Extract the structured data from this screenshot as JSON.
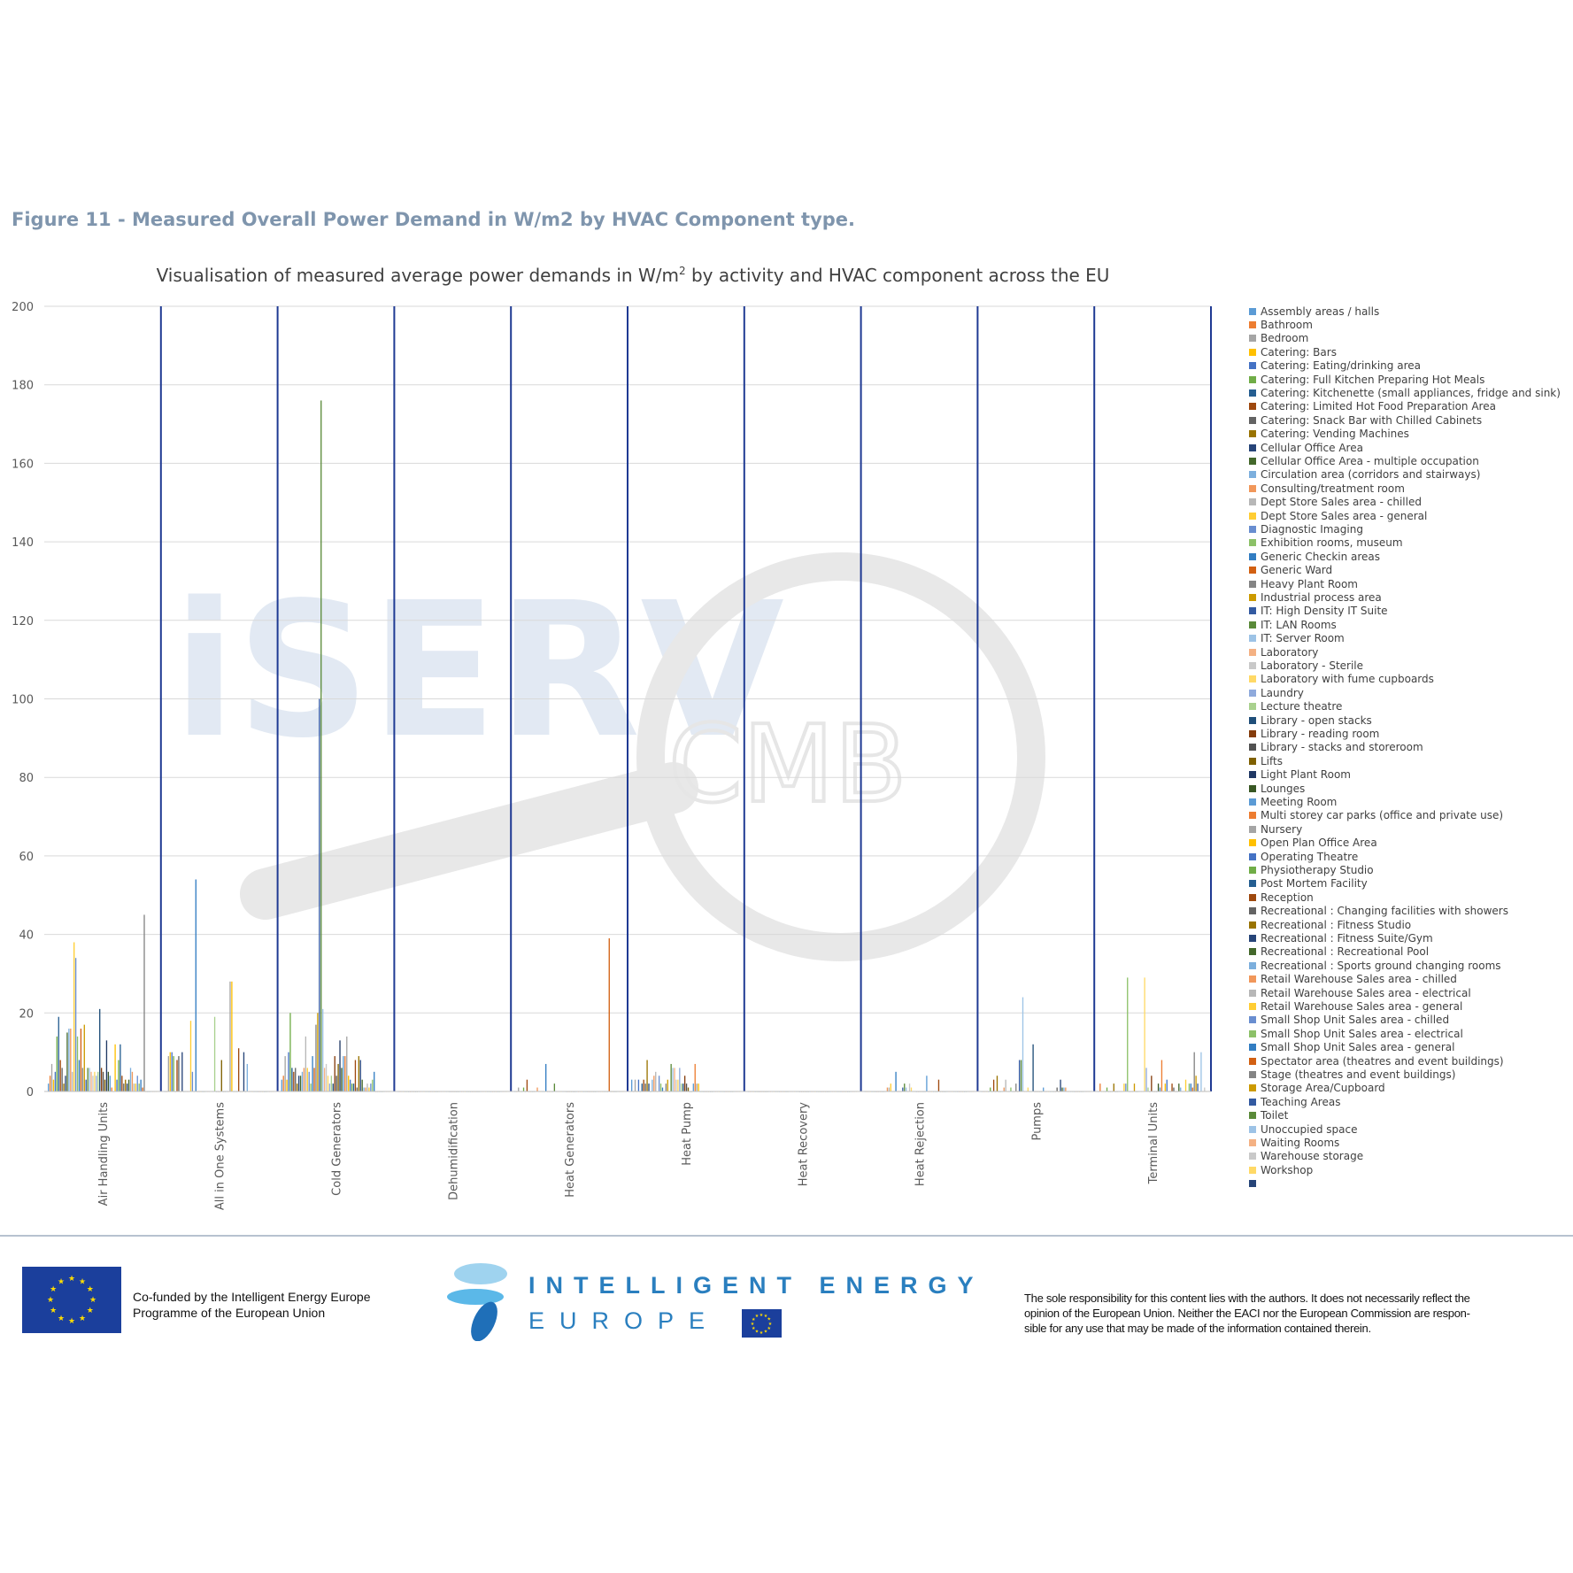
{
  "figure_caption": "Figure 11 - Measured Overall Power Demand in W/m2 by HVAC Component type.",
  "watermark": {
    "text1": "iSERV",
    "text2": "CMB"
  },
  "colors": {
    "palette": [
      "#5b9bd5",
      "#ed7d31",
      "#a5a5a5",
      "#ffc000",
      "#4472c4",
      "#70ad47",
      "#255e91",
      "#9e480e",
      "#636363",
      "#997300",
      "#264478",
      "#43682b",
      "#7cafdd",
      "#f1975a",
      "#b7b7b7",
      "#ffcd33",
      "#698ed0",
      "#8cc168",
      "#327dc2",
      "#d26012",
      "#848484",
      "#cc9a00",
      "#335aa1",
      "#5a8a39",
      "#9dc3e6",
      "#f4b183",
      "#c9c9c9",
      "#ffd966",
      "#8faadc",
      "#a9d18e",
      "#1f4e79",
      "#843c0c",
      "#525252",
      "#7f6000",
      "#203864",
      "#385723"
    ],
    "divider": "#1f3a93",
    "grid": "#d9d9d9",
    "axis_text": "#595959"
  },
  "chart_data": {
    "type": "bar",
    "title_prefix": "Visualisation of measured average power demands in W/m",
    "title_sup": "2",
    "title_suffix": " by activity and HVAC component across the EU",
    "ylim": [
      0,
      200
    ],
    "yticks": [
      "0",
      "20",
      "40",
      "60",
      "80",
      "100",
      "120",
      "140",
      "160",
      "180",
      "200"
    ],
    "categories": [
      "Air Handling Units",
      "All in One Systems",
      "Cold Generators",
      "Dehumidification",
      "Heat Generators",
      "Heat Pump",
      "Heat Recovery",
      "Heat Rejection",
      "Pumps",
      "Terminal Units"
    ],
    "series_names": [
      "Assembly areas / halls",
      "Bathroom",
      "Bedroom",
      "Catering: Bars",
      "Catering: Eating/drinking area",
      "Catering: Full Kitchen Preparing Hot Meals",
      "Catering: Kitchenette (small appliances, fridge and sink)",
      "Catering: Limited Hot Food Preparation Area",
      "Catering: Snack Bar with Chilled Cabinets",
      "Catering: Vending Machines",
      "Cellular Office Area",
      "Cellular Office Area - multiple occupation",
      "Circulation area (corridors and stairways)",
      "Consulting/treatment room",
      "Dept Store Sales area - chilled",
      "Dept Store Sales area - general",
      "Diagnostic Imaging",
      "Exhibition rooms, museum",
      "Generic Checkin areas",
      "Generic Ward",
      "Heavy Plant Room",
      "Industrial process area",
      "IT: High Density IT Suite",
      "IT: LAN Rooms",
      "IT: Server Room",
      "Laboratory",
      "Laboratory - Sterile",
      "Laboratory with fume cupboards",
      "Laundry",
      "Lecture theatre",
      "Library - open stacks",
      "Library - reading room",
      "Library - stacks and storeroom",
      "Lifts",
      "Light Plant Room",
      "Lounges",
      "Meeting Room",
      "Multi storey car parks (office and private use)",
      "Nursery",
      "Open Plan Office Area",
      "Operating Theatre",
      "Physiotherapy Studio",
      "Post Mortem Facility",
      "Reception",
      "Recreational : Changing facilities with showers",
      "Recreational : Fitness Studio",
      "Recreational : Fitness Suite/Gym",
      "Recreational : Recreational Pool",
      "Recreational : Sports ground changing rooms",
      "Retail Warehouse Sales area - chilled",
      "Retail Warehouse Sales area - electrical",
      "Retail Warehouse Sales area - general",
      "Small Shop Unit Sales area - chilled",
      "Small Shop Unit Sales area - electrical",
      "Small Shop Unit Sales area - general",
      "Spectator area (theatres and event buildings)",
      "Stage (theatres and event buildings)",
      "Storage Area/Cupboard",
      "Teaching Areas",
      "Toilet",
      "Unoccupied space",
      "Waiting Rooms",
      "Warehouse storage",
      "Workshop",
      ""
    ],
    "values": [
      [
        2,
        4,
        7,
        3,
        5,
        14,
        19,
        8,
        6,
        2,
        4,
        15,
        16,
        16,
        5,
        38,
        34,
        14,
        8,
        16,
        6,
        17,
        3,
        6,
        6,
        5,
        4,
        5,
        4,
        5,
        21,
        6,
        5,
        3,
        13,
        5,
        4,
        1,
        0,
        12,
        3,
        8,
        12,
        4,
        2,
        3,
        2,
        3,
        6,
        5,
        2,
        2,
        4,
        2,
        3,
        1,
        45,
        0,
        0,
        0,
        0,
        0,
        0,
        0
      ],
      [
        0,
        0,
        9,
        10,
        10,
        9,
        0,
        8,
        9,
        0,
        10,
        0,
        0,
        0,
        0,
        18,
        5,
        0,
        54,
        0,
        0,
        0,
        0,
        0,
        0,
        0,
        0,
        0,
        0,
        19,
        0,
        0,
        0,
        8,
        0,
        0,
        0,
        0,
        28,
        28,
        0,
        0,
        0,
        11,
        0,
        0,
        10,
        0,
        7,
        0,
        0,
        0,
        0,
        0,
        0,
        0,
        0,
        0,
        0,
        0,
        0,
        0,
        0,
        0
      ],
      [
        3,
        4,
        9,
        3,
        10,
        20,
        6,
        5,
        6,
        2,
        4,
        4,
        5,
        6,
        14,
        6,
        5,
        2,
        9,
        6,
        17,
        20,
        100,
        176,
        21,
        6,
        7,
        4,
        2,
        4,
        2,
        9,
        4,
        7,
        13,
        6,
        9,
        9,
        14,
        4,
        3,
        2,
        2,
        8,
        1,
        9,
        8,
        3,
        1,
        1,
        2,
        1,
        2,
        3,
        5,
        0,
        0,
        0,
        0,
        0,
        0,
        0,
        0,
        0
      ],
      [
        0,
        0,
        0,
        0,
        0,
        0,
        0,
        0,
        0,
        0,
        0,
        0,
        0,
        0,
        0,
        0,
        0,
        0,
        0,
        0,
        0,
        0,
        0,
        0,
        0,
        0,
        0,
        0,
        0,
        0,
        0,
        0,
        0,
        0,
        0,
        0,
        0,
        0,
        0,
        0,
        0,
        0,
        0,
        0,
        0,
        0,
        0,
        0,
        0,
        0,
        0,
        0,
        0,
        0,
        0,
        0,
        0,
        0,
        0,
        0,
        0,
        0,
        0,
        0
      ],
      [
        0,
        0,
        1,
        0,
        0,
        1,
        0,
        3,
        0,
        0,
        0,
        0,
        0,
        1,
        0,
        0,
        0,
        0,
        7,
        0,
        0,
        0,
        0,
        2,
        0,
        0,
        0,
        0,
        0,
        0,
        0,
        0,
        0,
        0,
        0,
        0,
        0,
        0,
        0,
        0,
        0,
        0,
        0,
        0,
        0,
        0,
        0,
        0,
        0,
        0,
        0,
        0,
        0,
        0,
        0,
        39,
        0,
        0,
        0,
        0,
        0,
        0,
        0,
        0
      ],
      [
        3,
        0,
        3,
        0,
        3,
        0,
        2,
        3,
        2,
        8,
        2,
        0,
        3,
        4,
        5,
        0,
        4,
        2,
        1,
        0,
        2,
        3,
        0,
        7,
        6,
        6,
        3,
        3,
        6,
        2,
        2,
        4,
        2,
        1,
        0,
        0,
        2,
        7,
        2,
        2,
        0,
        0,
        0,
        0,
        0,
        0,
        0,
        0,
        0,
        0,
        0,
        0,
        0,
        0,
        0,
        0,
        0,
        0,
        0,
        0,
        0,
        0,
        0,
        0
      ],
      [
        0,
        0,
        0,
        0,
        0,
        0,
        0,
        0,
        0,
        0,
        0,
        0,
        0,
        0,
        0,
        0,
        0,
        0,
        0,
        0,
        0,
        0,
        0,
        0,
        0,
        0,
        0,
        0,
        0,
        0,
        0,
        0,
        0,
        0,
        0,
        0,
        0,
        0,
        0,
        0,
        0,
        0,
        0,
        0,
        0,
        0,
        0,
        0,
        0,
        0,
        0,
        0,
        0,
        0,
        0,
        0,
        0,
        0,
        0,
        0,
        0,
        0,
        0,
        0
      ],
      [
        0,
        0,
        0,
        0,
        0,
        0,
        0,
        0,
        0,
        0,
        0,
        0,
        0,
        1,
        1,
        2,
        0,
        0,
        5,
        0,
        0,
        0,
        1,
        2,
        1,
        0,
        2,
        1,
        0,
        0,
        0,
        0,
        0,
        0,
        0,
        0,
        4,
        0,
        0,
        0,
        0,
        0,
        0,
        3,
        0,
        0,
        0,
        0,
        0,
        0,
        0,
        0,
        0,
        0,
        0,
        0,
        0,
        0,
        0,
        0,
        0,
        0,
        0,
        0
      ],
      [
        0,
        0,
        0,
        0,
        0,
        1,
        0,
        3,
        0,
        4,
        0,
        0,
        0,
        1,
        3,
        0,
        0,
        1,
        0,
        0,
        2,
        0,
        8,
        8,
        24,
        0,
        0,
        1,
        0,
        0,
        12,
        0,
        0,
        0,
        0,
        0,
        1,
        0,
        0,
        0,
        0,
        0,
        0,
        0,
        1,
        0,
        3,
        1,
        1,
        1,
        0,
        0,
        0,
        0,
        0,
        0,
        0,
        0,
        0,
        0,
        0,
        0,
        0,
        0
      ],
      [
        0,
        2,
        0,
        0,
        0,
        1,
        0,
        0,
        0,
        2,
        0,
        0,
        0,
        0,
        0,
        2,
        2,
        29,
        0,
        0,
        0,
        2,
        0,
        0,
        0,
        0,
        0,
        29,
        6,
        1,
        0,
        4,
        0,
        0,
        0,
        2,
        1,
        8,
        0,
        2,
        3,
        0,
        0,
        2,
        1,
        0,
        0,
        2,
        1,
        0,
        0,
        3,
        0,
        2,
        2,
        1,
        10,
        4,
        2,
        0,
        10,
        0,
        1,
        0
      ]
    ]
  },
  "footer": {
    "cofunded_line1": "Co-funded by the Intelligent Energy Europe",
    "cofunded_line2": "Programme of the European Union",
    "iee_title": "INTELLIGENT ENERGY",
    "iee_sub": "EUROPE",
    "disclaimer_line1": "The sole responsibility for this content lies with the authors. It does not necessarily reflect the",
    "disclaimer_line2": "opinion of the European Union. Neither the EACI nor the European Commission are respon-",
    "disclaimer_line3": "sible for any use that may be made of the information contained therein."
  }
}
